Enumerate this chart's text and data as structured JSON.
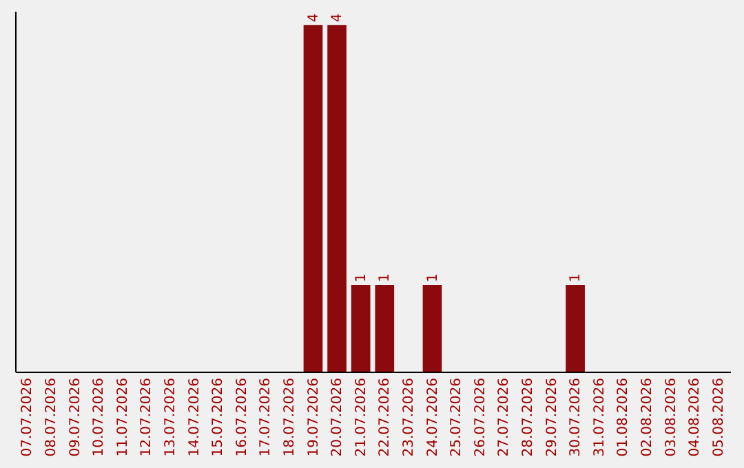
{
  "chart_data": {
    "type": "bar",
    "categories": [
      "07.07.2026",
      "08.07.2026",
      "09.07.2026",
      "10.07.2026",
      "11.07.2026",
      "12.07.2026",
      "13.07.2026",
      "14.07.2026",
      "15.07.2026",
      "16.07.2026",
      "17.07.2026",
      "18.07.2026",
      "19.07.2026",
      "20.07.2026",
      "21.07.2026",
      "22.07.2026",
      "23.07.2026",
      "24.07.2026",
      "25.07.2026",
      "26.07.2026",
      "27.07.2026",
      "28.07.2026",
      "29.07.2026",
      "30.07.2026",
      "31.07.2026",
      "01.08.2026",
      "02.08.2026",
      "03.08.2026",
      "04.08.2026",
      "05.08.2026"
    ],
    "values": [
      null,
      null,
      null,
      null,
      null,
      null,
      null,
      null,
      null,
      null,
      null,
      null,
      4,
      4,
      1,
      1,
      null,
      1,
      null,
      null,
      null,
      null,
      null,
      1,
      null,
      null,
      null,
      null,
      null,
      null
    ],
    "data_labels": true,
    "color": "#8b0a0e",
    "tick_labels": "x"
  }
}
